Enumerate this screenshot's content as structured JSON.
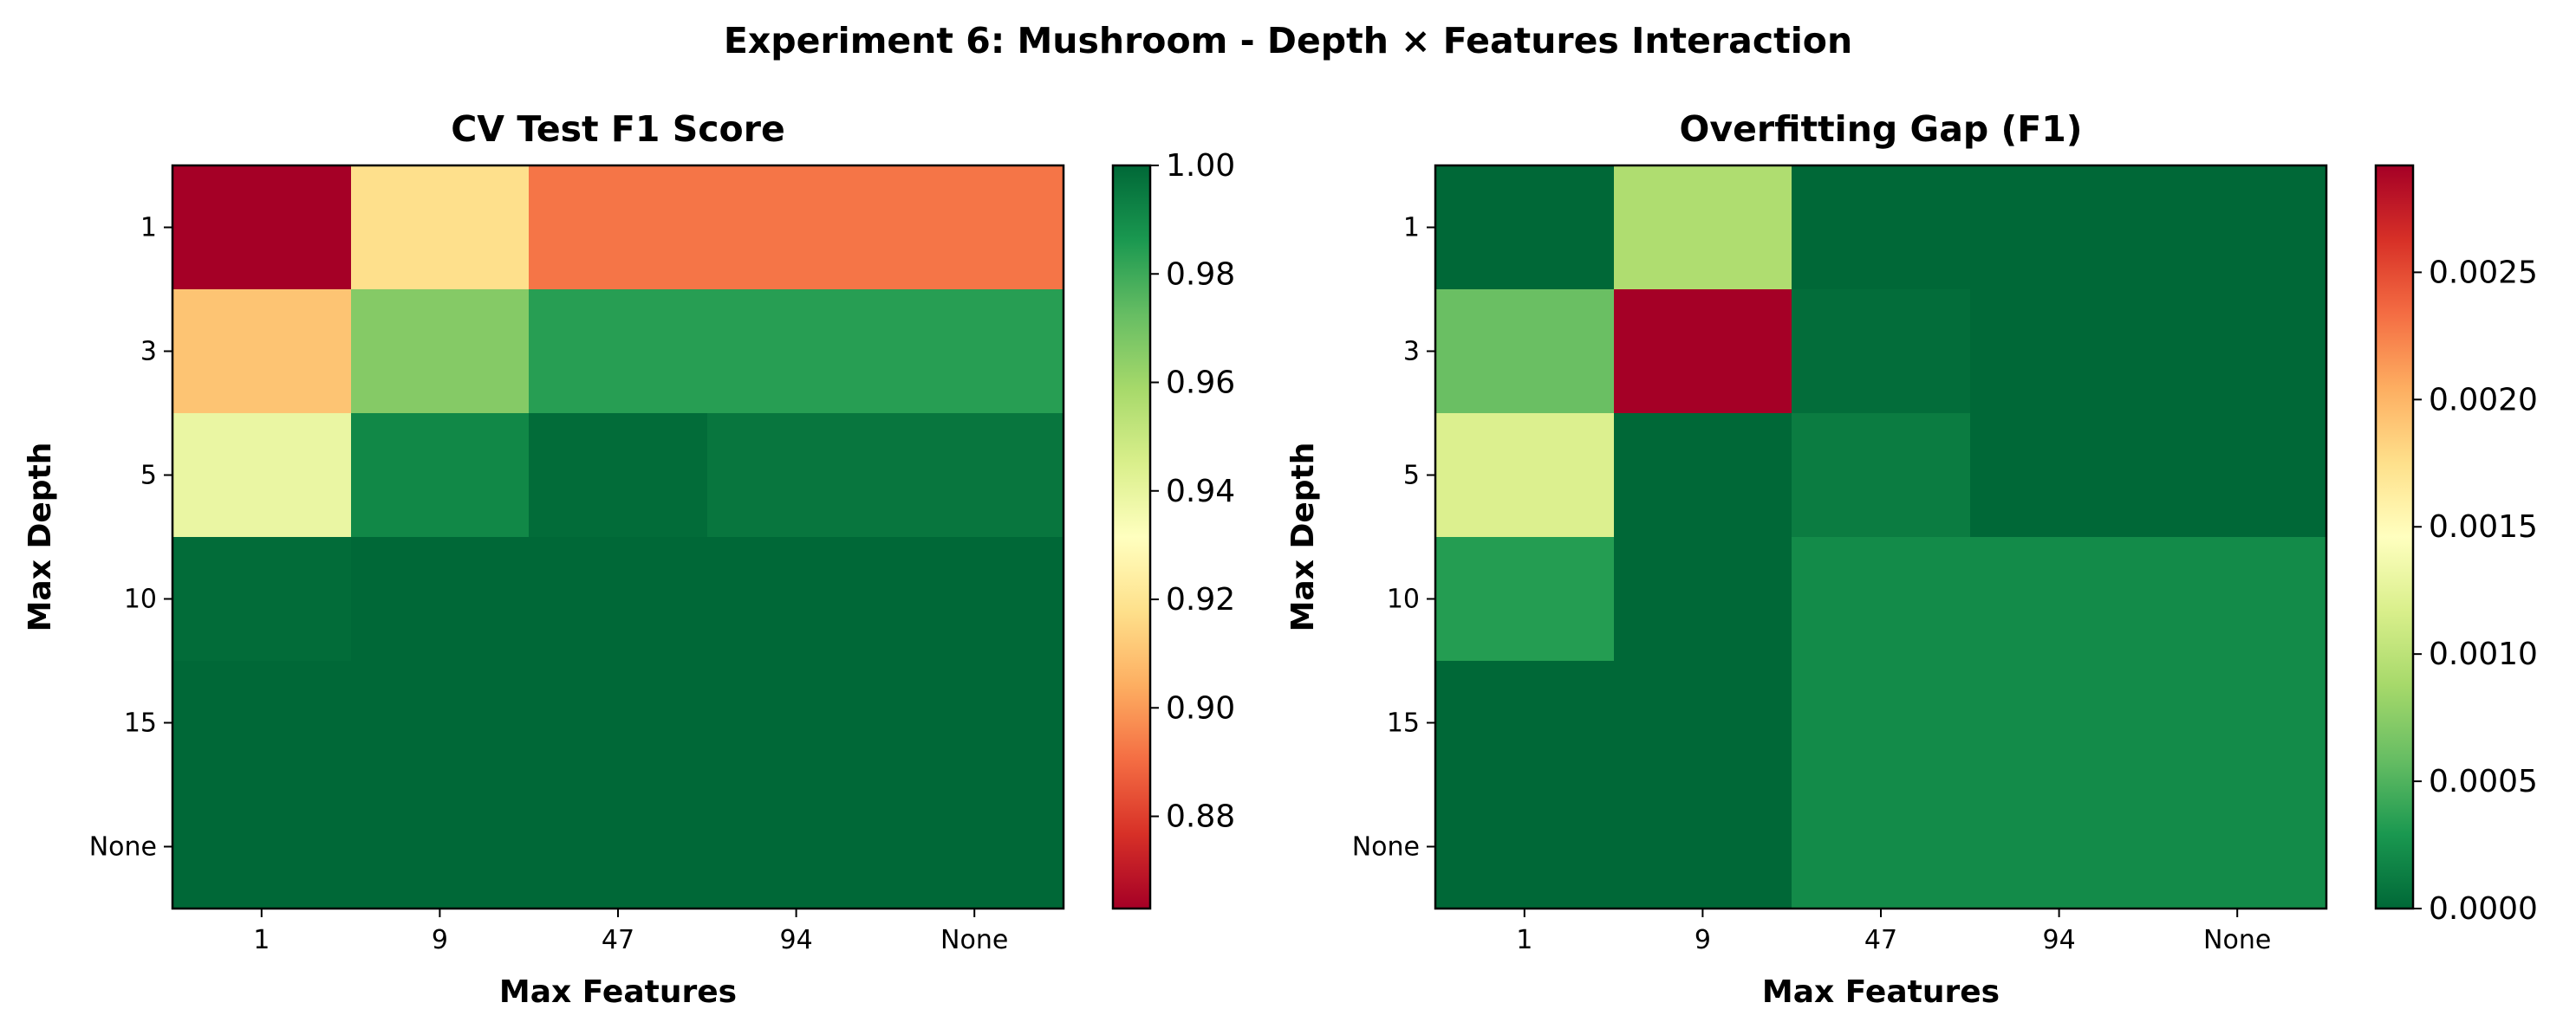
{
  "title": "Experiment 6: Mushroom - Depth × Features Interaction",
  "colormap": [
    "#a50026",
    "#d73027",
    "#f46d43",
    "#fdae61",
    "#fee08b",
    "#ffffbf",
    "#d9ef8b",
    "#a6d96a",
    "#66bd63",
    "#1a9850",
    "#006837"
  ],
  "chart_data": [
    {
      "type": "heatmap",
      "title": "CV Test F1 Score",
      "xlabel": "Max Features",
      "ylabel": "Max Depth",
      "x_categories": [
        "1",
        "9",
        "47",
        "94",
        "None"
      ],
      "y_categories": [
        "1",
        "3",
        "5",
        "10",
        "15",
        "None"
      ],
      "values": [
        [
          0.863,
          0.918,
          0.892,
          0.892,
          0.892
        ],
        [
          0.91,
          0.966,
          0.984,
          0.984,
          0.984
        ],
        [
          0.939,
          0.991,
          0.999,
          0.996,
          0.996
        ],
        [
          0.999,
          1.0,
          1.0,
          1.0,
          1.0
        ],
        [
          1.0,
          1.0,
          1.0,
          1.0,
          1.0
        ],
        [
          1.0,
          1.0,
          1.0,
          1.0,
          1.0
        ]
      ],
      "colorbar": {
        "vmin": 0.863,
        "vmax": 1.0,
        "ticks": [
          0.88,
          0.9,
          0.92,
          0.94,
          0.96,
          0.98,
          1.0
        ],
        "tick_labels": [
          "0.88",
          "0.90",
          "0.92",
          "0.94",
          "0.96",
          "0.98",
          "1.00"
        ]
      }
    },
    {
      "type": "heatmap",
      "title": "Overfitting Gap (F1)",
      "xlabel": "Max Features",
      "ylabel": "Max Depth",
      "x_categories": [
        "1",
        "9",
        "47",
        "94",
        "None"
      ],
      "y_categories": [
        "1",
        "3",
        "5",
        "10",
        "15",
        "None"
      ],
      "values": [
        [
          0.0,
          0.00093,
          0.0,
          0.0,
          0.0
        ],
        [
          0.0006,
          0.00292,
          3e-05,
          0.0,
          0.0
        ],
        [
          0.00119,
          0.0,
          0.00012,
          0.0,
          0.0
        ],
        [
          0.00033,
          0.0,
          0.00021,
          0.00021,
          0.00021
        ],
        [
          0.0,
          0.0,
          0.00021,
          0.00021,
          0.00021
        ],
        [
          0.0,
          0.0,
          0.00021,
          0.00021,
          0.00021
        ]
      ],
      "colorbar": {
        "vmin": 0.0,
        "vmax": 0.00292,
        "reversed": true,
        "ticks": [
          0.0,
          0.0005,
          0.001,
          0.0015,
          0.002,
          0.0025
        ],
        "tick_labels": [
          "0.0000",
          "0.0005",
          "0.0010",
          "0.0015",
          "0.0020",
          "0.0025"
        ]
      }
    }
  ]
}
